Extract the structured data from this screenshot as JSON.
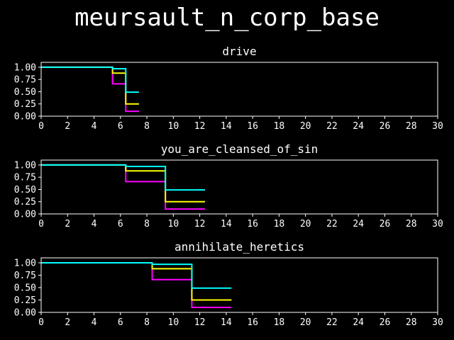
{
  "page_title": "meursault_n_corp_base",
  "colors": {
    "background": "#000000",
    "axes": "#ffffff",
    "series_1": "#ff00ff",
    "series_2": "#ffff00",
    "series_3": "#00ffff"
  },
  "chart_data": [
    {
      "type": "line",
      "step": "post",
      "title": "drive",
      "xlim": [
        0,
        30
      ],
      "ylim": [
        0,
        1.1
      ],
      "xticks": [
        0,
        2,
        4,
        6,
        8,
        10,
        12,
        14,
        16,
        18,
        20,
        22,
        24,
        26,
        28,
        30
      ],
      "yticks": [
        0.0,
        0.25,
        0.5,
        0.75,
        1.0
      ],
      "series": [
        {
          "color": "#ff00ff",
          "x": [
            0,
            5.4,
            6.4,
            7.4
          ],
          "y": [
            1.0,
            0.66,
            0.1,
            0.1
          ]
        },
        {
          "color": "#ffff00",
          "x": [
            0,
            5.4,
            6.4,
            7.4
          ],
          "y": [
            1.0,
            0.88,
            0.25,
            0.25
          ]
        },
        {
          "color": "#00ffff",
          "x": [
            0,
            5.4,
            6.4,
            7.4
          ],
          "y": [
            1.0,
            0.97,
            0.49,
            0.49
          ]
        }
      ]
    },
    {
      "type": "line",
      "step": "post",
      "title": "you_are_cleansed_of_sin",
      "xlim": [
        0,
        30
      ],
      "ylim": [
        0,
        1.1
      ],
      "xticks": [
        0,
        2,
        4,
        6,
        8,
        10,
        12,
        14,
        16,
        18,
        20,
        22,
        24,
        26,
        28,
        30
      ],
      "yticks": [
        0.0,
        0.25,
        0.5,
        0.75,
        1.0
      ],
      "series": [
        {
          "color": "#ff00ff",
          "x": [
            0,
            6.4,
            9.4,
            12.4
          ],
          "y": [
            1.0,
            0.66,
            0.1,
            0.1
          ]
        },
        {
          "color": "#ffff00",
          "x": [
            0,
            6.4,
            9.4,
            12.4
          ],
          "y": [
            1.0,
            0.88,
            0.25,
            0.25
          ]
        },
        {
          "color": "#00ffff",
          "x": [
            0,
            6.4,
            9.4,
            12.4
          ],
          "y": [
            1.0,
            0.97,
            0.49,
            0.49
          ]
        }
      ]
    },
    {
      "type": "line",
      "step": "post",
      "title": "annihilate_heretics",
      "xlim": [
        0,
        30
      ],
      "ylim": [
        0,
        1.1
      ],
      "xticks": [
        0,
        2,
        4,
        6,
        8,
        10,
        12,
        14,
        16,
        18,
        20,
        22,
        24,
        26,
        28,
        30
      ],
      "yticks": [
        0.0,
        0.25,
        0.5,
        0.75,
        1.0
      ],
      "series": [
        {
          "color": "#ff00ff",
          "x": [
            0,
            8.4,
            11.4,
            14.4
          ],
          "y": [
            1.0,
            0.66,
            0.1,
            0.1
          ]
        },
        {
          "color": "#ffff00",
          "x": [
            0,
            8.4,
            11.4,
            14.4
          ],
          "y": [
            1.0,
            0.88,
            0.25,
            0.25
          ]
        },
        {
          "color": "#00ffff",
          "x": [
            0,
            8.4,
            11.4,
            14.4
          ],
          "y": [
            1.0,
            0.97,
            0.49,
            0.49
          ]
        }
      ]
    }
  ]
}
